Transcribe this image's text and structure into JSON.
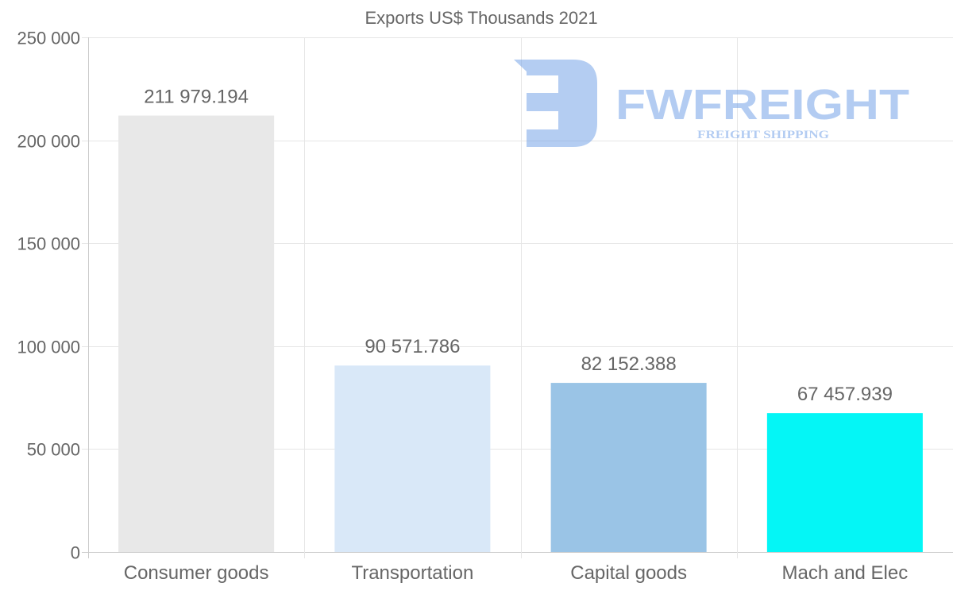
{
  "watermark": {
    "brand": "FWFREIGHT",
    "tagline": "FREIGHT SHIPPING"
  },
  "chart_data": {
    "type": "bar",
    "title": "Exports US$ Thousands 2021",
    "xlabel": "",
    "ylabel": "",
    "categories": [
      "Consumer goods",
      "Transportation",
      "Capital goods",
      "Mach and Elec"
    ],
    "values": [
      211979.194,
      90571.786,
      82152.388,
      67457.939
    ],
    "value_labels": [
      "211 979.194",
      "90 571.786",
      "82 152.388",
      "67 457.939"
    ],
    "colors": [
      "#e8e8e8",
      "#d9e8f8",
      "#9ac4e6",
      "#04f6f6"
    ],
    "ylim": [
      0,
      250000
    ],
    "yticks": [
      0,
      50000,
      100000,
      150000,
      200000,
      250000
    ],
    "ytick_labels": [
      "0",
      "50 000",
      "100 000",
      "150 000",
      "200 000",
      "250 000"
    ],
    "grid": true,
    "legend": "none"
  }
}
